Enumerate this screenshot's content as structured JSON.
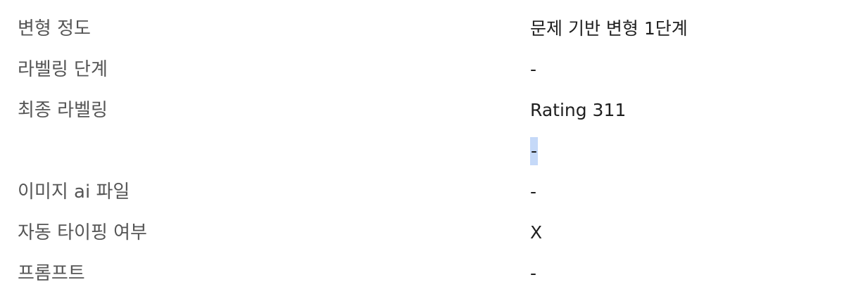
{
  "properties": [
    {
      "label": "변형 정도",
      "value": "문제 기반 변형 1단계"
    },
    {
      "label": "라벨링 단계",
      "value": "-"
    },
    {
      "label": "최종 라벨링",
      "value": "Rating 311"
    },
    {
      "label": "",
      "value": "-"
    },
    {
      "label": "이미지 ai 파일",
      "value": "-"
    },
    {
      "label": "자동 타이핑 여부",
      "value": "X"
    },
    {
      "label": "프롬프트",
      "value": "-"
    }
  ],
  "selection_color": "#c5d9f8",
  "label_color": "#555555",
  "value_color": "#1f1f1f"
}
